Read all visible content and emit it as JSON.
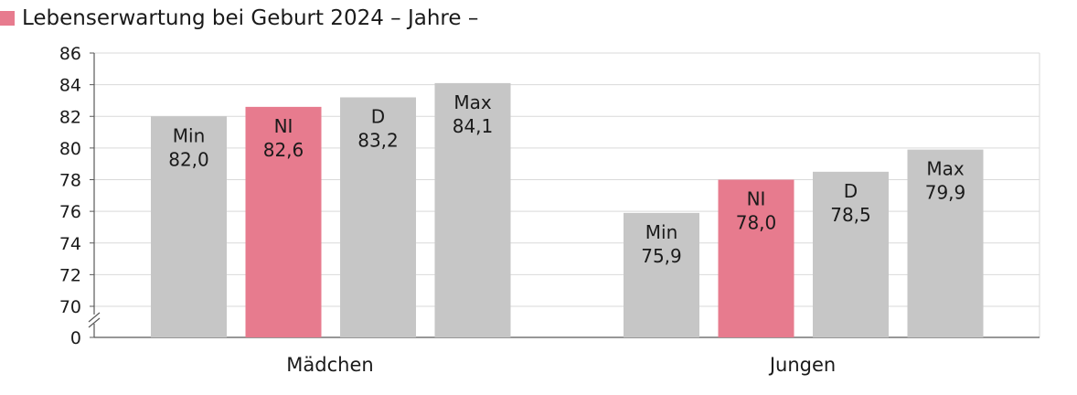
{
  "title": "Lebenserwartung bei Geburt 2024 – Jahre –",
  "colors": {
    "ni": "#e77b8e",
    "other": "#c6c6c6",
    "grid": "#d9d9d9",
    "axis": "#595959"
  },
  "chart_data": {
    "type": "bar",
    "title": "Lebenserwartung bei Geburt 2024 – Jahre –",
    "xlabel": "",
    "ylabel": "",
    "ylim": [
      70,
      86
    ],
    "axis_break": true,
    "yticks": [
      "0",
      "70",
      "72",
      "74",
      "76",
      "78",
      "80",
      "82",
      "84",
      "86"
    ],
    "grid": true,
    "categories": [
      "Mädchen",
      "Jungen"
    ],
    "groups": [
      {
        "category": "Mädchen",
        "bars": [
          {
            "name": "Min",
            "value": 82.0,
            "label": "82,0"
          },
          {
            "name": "NI",
            "value": 82.6,
            "label": "82,6"
          },
          {
            "name": "D",
            "value": 83.2,
            "label": "83,2"
          },
          {
            "name": "Max",
            "value": 84.1,
            "label": "84,1"
          }
        ]
      },
      {
        "category": "Jungen",
        "bars": [
          {
            "name": "Min",
            "value": 75.9,
            "label": "75,9"
          },
          {
            "name": "NI",
            "value": 78.0,
            "label": "78,0"
          },
          {
            "name": "D",
            "value": 78.5,
            "label": "78,5"
          },
          {
            "name": "Max",
            "value": 79.9,
            "label": "79,9"
          }
        ]
      }
    ]
  }
}
